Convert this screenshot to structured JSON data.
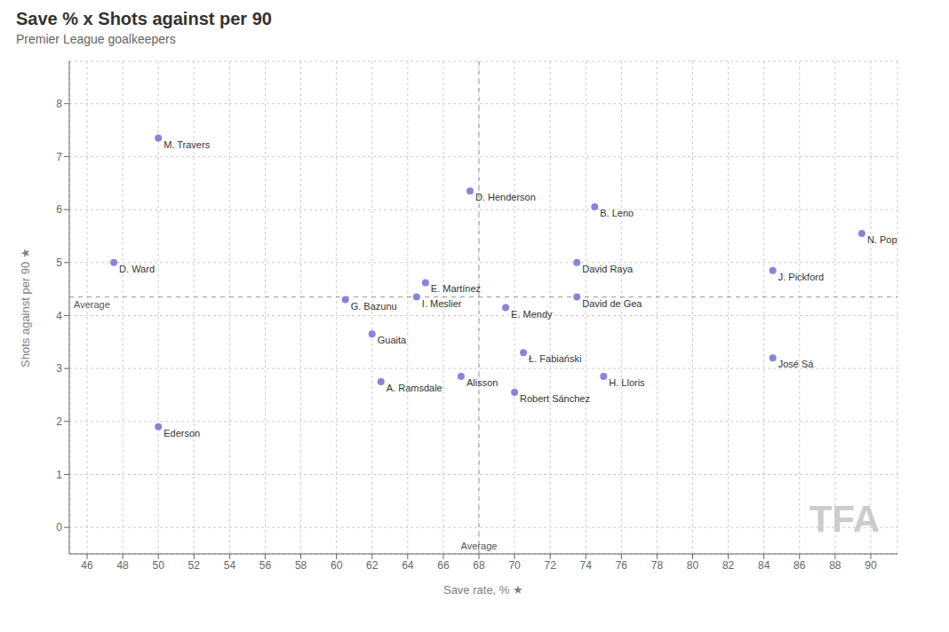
{
  "chart_data": {
    "type": "scatter",
    "title": "Save % x Shots against per 90",
    "subtitle": "Premier League goalkeepers",
    "xlabel": "Save rate, % ★",
    "ylabel": "Shots against per 90 ★",
    "x": [
      50.0,
      47.5,
      50.0,
      60.5,
      62.0,
      62.5,
      65.0,
      64.5,
      67.5,
      67.0,
      69.5,
      70.5,
      70.0,
      73.5,
      73.5,
      74.5,
      75.0,
      84.5,
      89.5,
      84.5
    ],
    "values": [
      7.35,
      5.0,
      1.9,
      4.3,
      3.65,
      2.75,
      4.62,
      4.35,
      6.35,
      2.85,
      4.15,
      3.3,
      2.55,
      5.0,
      4.35,
      6.05,
      2.85,
      4.85,
      5.55,
      3.2
    ],
    "labels": [
      "M. Travers",
      "D. Ward",
      "Ederson",
      "G. Bazunu",
      "Guaita",
      "A. Ramsdale",
      "E. Martínez",
      "I. Meslier",
      "D. Henderson",
      "Alisson",
      "E. Mendy",
      "Ł. Fabiański",
      "Robert Sánchez",
      "David Raya",
      "David de Gea",
      "B. Leno",
      "H. Lloris",
      "J. Pickford",
      "N. Pope",
      "José Sá"
    ],
    "color": "#8884d8",
    "xlim": [
      45,
      91.5
    ],
    "ylim": [
      -0.5,
      8.8
    ],
    "xticks": [
      46,
      48,
      50,
      52,
      54,
      56,
      58,
      60,
      62,
      64,
      66,
      68,
      70,
      72,
      74,
      76,
      78,
      80,
      82,
      84,
      86,
      88,
      90
    ],
    "yticks": [
      0,
      1,
      2,
      3,
      4,
      5,
      6,
      7,
      8
    ],
    "grid": true,
    "reference_lines": [
      {
        "axis": "x",
        "value": 68.0,
        "label": "Average"
      },
      {
        "axis": "y",
        "value": 4.35,
        "label": "Average"
      }
    ],
    "annotations": [
      "TFA"
    ]
  }
}
